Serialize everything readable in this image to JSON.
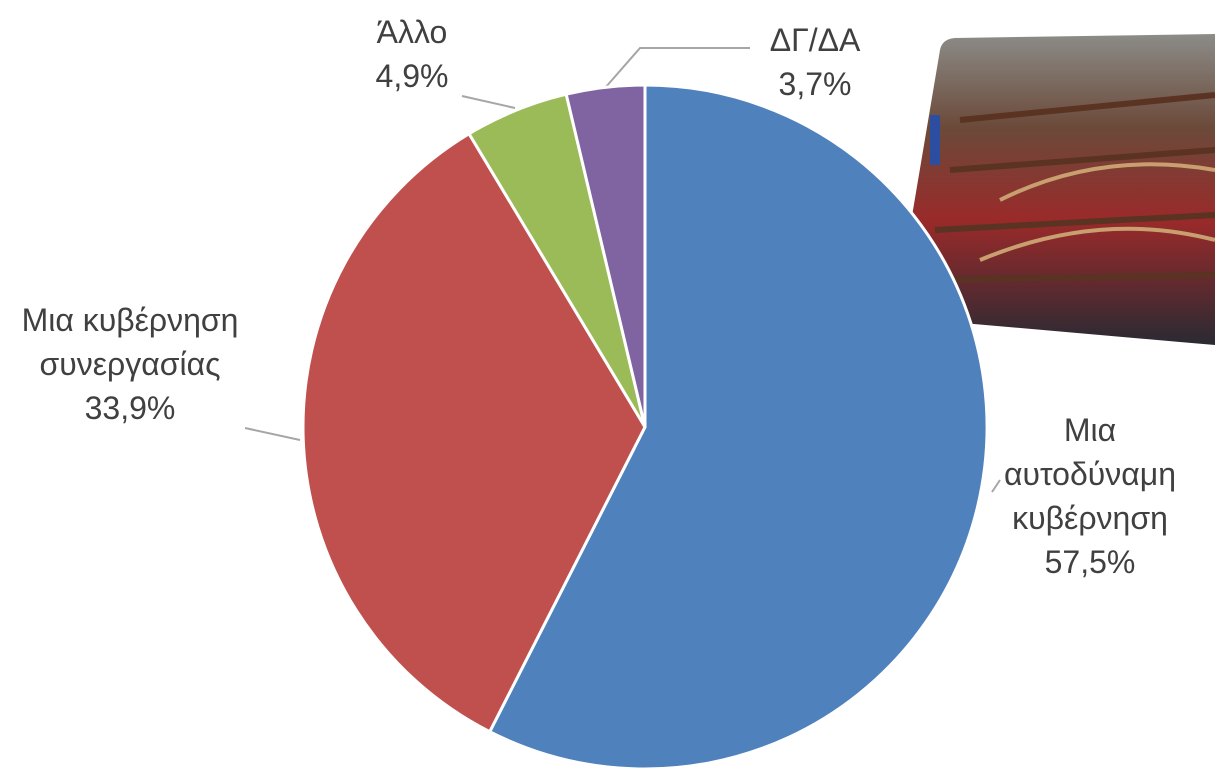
{
  "chart_data": {
    "type": "pie",
    "categories": [
      "Μια αυτοδύναμη κυβέρνηση",
      "Μια κυβέρνηση συνεργασίας",
      "Άλλο",
      "ΔΓ/ΔΑ"
    ],
    "values": [
      57.5,
      33.9,
      4.9,
      3.7
    ],
    "value_labels": [
      "57,5%",
      "33,9%",
      "4,9%",
      "3,7%"
    ],
    "colors": [
      "#4f81bd",
      "#c0504d",
      "#9bbb59",
      "#8064a2"
    ]
  }
}
